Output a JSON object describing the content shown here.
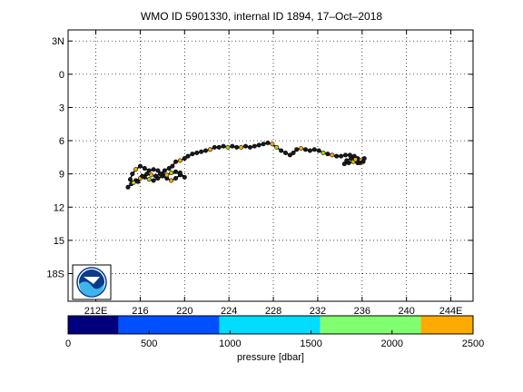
{
  "chart_data": {
    "type": "scatter",
    "title": "WMO ID 5901330, internal ID 1894, 17–Oct–2018",
    "x_ticks": [
      {
        "value": 212,
        "label": "212E"
      },
      {
        "value": 216,
        "label": "216"
      },
      {
        "value": 220,
        "label": "220"
      },
      {
        "value": 224,
        "label": "224"
      },
      {
        "value": 228,
        "label": "228"
      },
      {
        "value": 232,
        "label": "232"
      },
      {
        "value": 236,
        "label": "236"
      },
      {
        "value": 240,
        "label": "240"
      },
      {
        "value": 244,
        "label": "244E"
      }
    ],
    "y_ticks": [
      {
        "value": -3,
        "label": "3N"
      },
      {
        "value": 0,
        "label": "0"
      },
      {
        "value": 3,
        "label": "3"
      },
      {
        "value": 6,
        "label": "6"
      },
      {
        "value": 9,
        "label": "9"
      },
      {
        "value": 12,
        "label": "12"
      },
      {
        "value": 15,
        "label": "15"
      },
      {
        "value": 18,
        "label": "18S"
      }
    ],
    "xlim": [
      209.5,
      246
    ],
    "ylim": [
      -4,
      20.5
    ],
    "grid": true,
    "colorbar": {
      "label": "pressure [dbar]",
      "range": [
        0,
        2500
      ],
      "ticks": [
        0,
        500,
        1000,
        1500,
        2000,
        2500
      ],
      "colors": [
        "#00007f",
        "#0050ff",
        "#00ddff",
        "#80ff70",
        "#ffaa00"
      ]
    },
    "track": [
      [
        214.9,
        10.2
      ],
      [
        215.2,
        9.9
      ],
      [
        215.6,
        9.6
      ],
      [
        216.0,
        9.4
      ],
      [
        216.4,
        9.3
      ],
      [
        216.8,
        9.5
      ],
      [
        217.2,
        9.6
      ],
      [
        217.6,
        9.4
      ],
      [
        218.0,
        9.2
      ],
      [
        218.4,
        9.4
      ],
      [
        218.8,
        9.6
      ],
      [
        219.2,
        9.4
      ],
      [
        219.6,
        9.1
      ],
      [
        220.0,
        9.3
      ],
      [
        219.6,
        8.9
      ],
      [
        219.2,
        8.8
      ],
      [
        218.8,
        8.9
      ],
      [
        218.4,
        9.1
      ],
      [
        218.0,
        9.0
      ],
      [
        217.6,
        8.7
      ],
      [
        217.2,
        8.6
      ],
      [
        216.8,
        8.7
      ],
      [
        216.4,
        8.5
      ],
      [
        216.0,
        8.3
      ],
      [
        215.6,
        8.6
      ],
      [
        215.3,
        9.0
      ],
      [
        215.1,
        9.5
      ],
      [
        215.4,
        9.8
      ],
      [
        215.8,
        9.7
      ],
      [
        216.2,
        9.2
      ],
      [
        216.6,
        9.0
      ],
      [
        217.0,
        9.1
      ],
      [
        217.4,
        9.2
      ],
      [
        217.8,
        9.0
      ],
      [
        218.2,
        8.7
      ],
      [
        218.6,
        8.5
      ],
      [
        218.9,
        8.3
      ],
      [
        219.2,
        7.9
      ],
      [
        219.6,
        7.8
      ],
      [
        220.0,
        7.6
      ],
      [
        220.3,
        7.4
      ],
      [
        220.7,
        7.2
      ],
      [
        221.1,
        7.1
      ],
      [
        221.5,
        7.0
      ],
      [
        221.9,
        6.9
      ],
      [
        222.3,
        6.8
      ],
      [
        222.7,
        6.6
      ],
      [
        223.1,
        6.6
      ],
      [
        223.5,
        6.5
      ],
      [
        223.9,
        6.6
      ],
      [
        224.3,
        6.5
      ],
      [
        224.7,
        6.6
      ],
      [
        225.1,
        6.6
      ],
      [
        225.5,
        6.5
      ],
      [
        225.9,
        6.6
      ],
      [
        226.3,
        6.5
      ],
      [
        226.7,
        6.4
      ],
      [
        227.1,
        6.3
      ],
      [
        227.5,
        6.2
      ],
      [
        227.9,
        6.3
      ],
      [
        228.3,
        6.6
      ],
      [
        228.7,
        6.9
      ],
      [
        229.1,
        7.1
      ],
      [
        229.5,
        7.3
      ],
      [
        229.8,
        7.1
      ],
      [
        230.1,
        6.8
      ],
      [
        230.5,
        6.7
      ],
      [
        230.9,
        6.8
      ],
      [
        231.3,
        6.9
      ],
      [
        231.7,
        6.8
      ],
      [
        232.1,
        6.9
      ],
      [
        232.5,
        7.1
      ],
      [
        232.9,
        7.2
      ],
      [
        233.3,
        7.3
      ],
      [
        233.7,
        7.4
      ],
      [
        234.1,
        7.4
      ],
      [
        234.5,
        7.3
      ],
      [
        234.9,
        7.3
      ],
      [
        235.3,
        7.4
      ],
      [
        235.6,
        7.6
      ],
      [
        235.9,
        7.8
      ],
      [
        235.6,
        8.0
      ],
      [
        235.2,
        7.9
      ],
      [
        234.8,
        8.0
      ],
      [
        234.4,
        8.1
      ],
      [
        234.6,
        7.8
      ],
      [
        235.0,
        7.6
      ],
      [
        235.4,
        7.7
      ],
      [
        235.8,
        8.0
      ],
      [
        236.1,
        7.9
      ],
      [
        236.2,
        7.6
      ]
    ],
    "logo": "noaa-logo"
  }
}
